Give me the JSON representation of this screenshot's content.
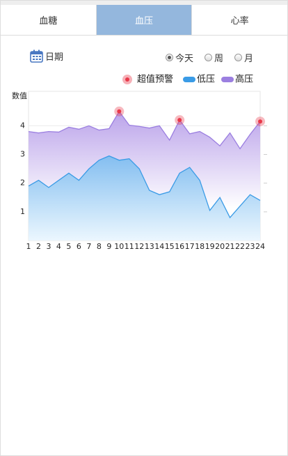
{
  "tabs": [
    "血糖",
    "血压",
    "心率"
  ],
  "date_label": "日期",
  "range_options": [
    "今天",
    "周",
    "月"
  ],
  "chart_data": {
    "type": "area",
    "y_label": "数值",
    "categories": [
      "1",
      "2",
      "3",
      "4",
      "5",
      "6",
      "7",
      "8",
      "9",
      "10",
      "11",
      "12",
      "13",
      "14",
      "15",
      "16",
      "17",
      "18",
      "19",
      "20",
      "21",
      "22",
      "23",
      "24"
    ],
    "series": [
      {
        "name": "超值预警",
        "color": "#e8394a",
        "values": [
          null,
          null,
          null,
          null,
          null,
          null,
          null,
          null,
          null,
          4.5,
          null,
          null,
          null,
          null,
          null,
          4.2,
          null,
          null,
          null,
          null,
          null,
          null,
          null,
          4.15
        ]
      },
      {
        "name": "低压",
        "color": "#3a9be6",
        "values": [
          1.9,
          2.1,
          1.85,
          2.1,
          2.35,
          2.1,
          2.5,
          2.8,
          2.95,
          2.8,
          2.85,
          2.5,
          1.75,
          1.6,
          1.7,
          2.35,
          2.55,
          2.1,
          1.05,
          1.5,
          0.8,
          1.2,
          1.6,
          1.4
        ]
      },
      {
        "name": "高压",
        "color": "#9b7fe0",
        "values": [
          3.8,
          3.75,
          3.8,
          3.78,
          3.95,
          3.88,
          4.0,
          3.85,
          3.9,
          4.5,
          4.02,
          3.98,
          3.92,
          4.0,
          3.5,
          4.2,
          3.72,
          3.8,
          3.6,
          3.3,
          3.75,
          3.2,
          3.7,
          4.15
        ]
      }
    ],
    "ylim": [
      0,
      5.2
    ],
    "yticks": [
      1,
      2,
      3,
      4
    ],
    "grid": true
  }
}
